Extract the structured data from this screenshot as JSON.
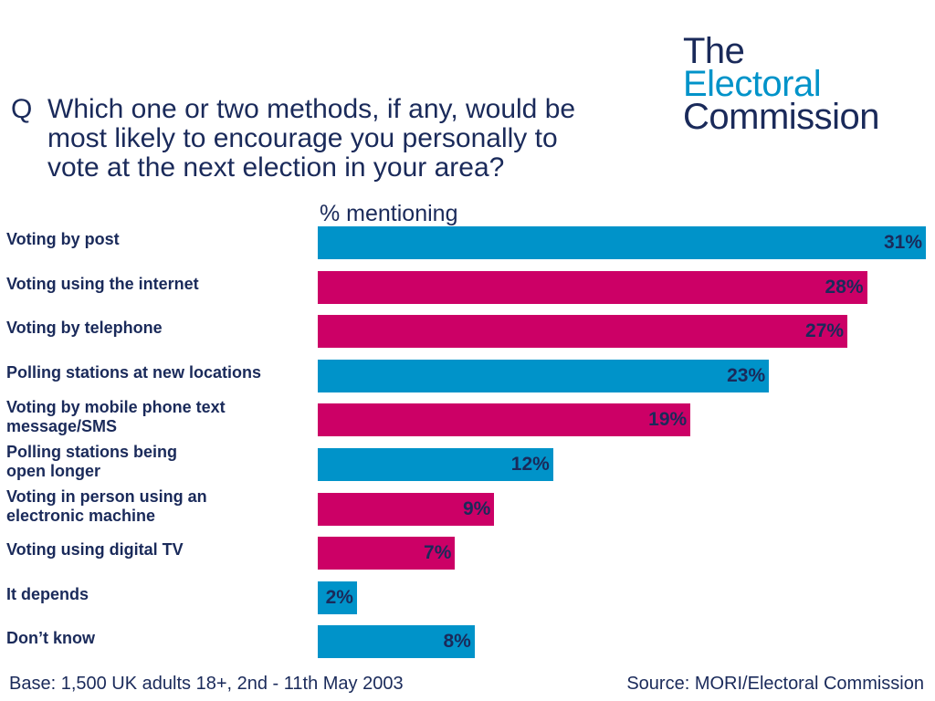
{
  "question": {
    "marker": "Q",
    "lines": [
      "Which one or two methods, if any, would be",
      "most likely to encourage you personally to",
      "vote at the next election in your area?"
    ]
  },
  "logo": {
    "line1": "The",
    "line2": "Electoral",
    "line3": "Commission"
  },
  "colors": {
    "blue": "#0093c9",
    "magenta": "#cc0066",
    "navy": "#1a2a5a"
  },
  "chart_data": {
    "type": "bar",
    "orientation": "horizontal",
    "ylabel": "% mentioning",
    "xlim": [
      0,
      31
    ],
    "categories": [
      [
        "Voting by post"
      ],
      [
        "Voting using the internet"
      ],
      [
        "Voting by telephone"
      ],
      [
        "Polling stations at new locations"
      ],
      [
        "Voting by mobile phone text",
        "message/SMS"
      ],
      [
        "Polling stations being",
        "open longer"
      ],
      [
        "Voting in person using an",
        "electronic machine"
      ],
      [
        "Voting using digital TV"
      ],
      [
        "It depends"
      ],
      [
        "Don’t know"
      ]
    ],
    "values": [
      31,
      28,
      27,
      23,
      19,
      12,
      9,
      7,
      2,
      8
    ],
    "value_labels": [
      "31%",
      "28%",
      "27%",
      "23%",
      "19%",
      "12%",
      "9%",
      "7%",
      "2%",
      "8%"
    ],
    "bar_colors": [
      "blue",
      "magenta",
      "magenta",
      "blue",
      "magenta",
      "blue",
      "magenta",
      "magenta",
      "blue",
      "blue"
    ]
  },
  "footer": {
    "base": "Base: 1,500 UK adults 18+, 2nd - 11th May 2003",
    "source": "Source: MORI/Electoral Commission"
  }
}
